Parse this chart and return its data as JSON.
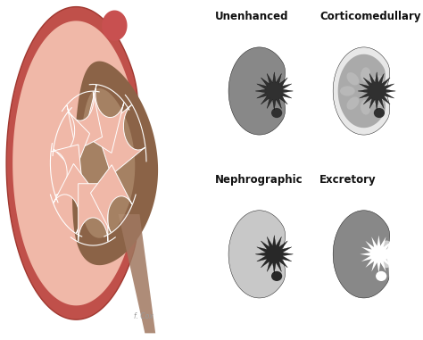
{
  "background_color": "#ffffff",
  "labels": {
    "top_left": "Unenhanced",
    "top_right": "Corticomedullary",
    "bottom_left": "Nephrographic",
    "bottom_right": "Excretory"
  },
  "label_color": "#111111",
  "label_fontsize": 8.5,
  "figsize": [
    4.74,
    3.81
  ],
  "dpi": 100,
  "phases": {
    "unenhanced": {
      "parenchyma": "#888888",
      "medulla": "#666666",
      "pelvis": "#303030",
      "cortex_bright": false
    },
    "corticomedullary": {
      "parenchyma": "#e8e8e8",
      "medulla": "#aaaaaa",
      "pelvis": "#303030",
      "cortex_bright": true
    },
    "nephrographic": {
      "parenchyma": "#c8c8c8",
      "medulla": "#c0c0c0",
      "pelvis": "#282828",
      "cortex_bright": false
    },
    "excretory": {
      "parenchyma": "#888888",
      "medulla": "#787878",
      "pelvis": "#ffffff",
      "cortex_bright": false
    }
  }
}
